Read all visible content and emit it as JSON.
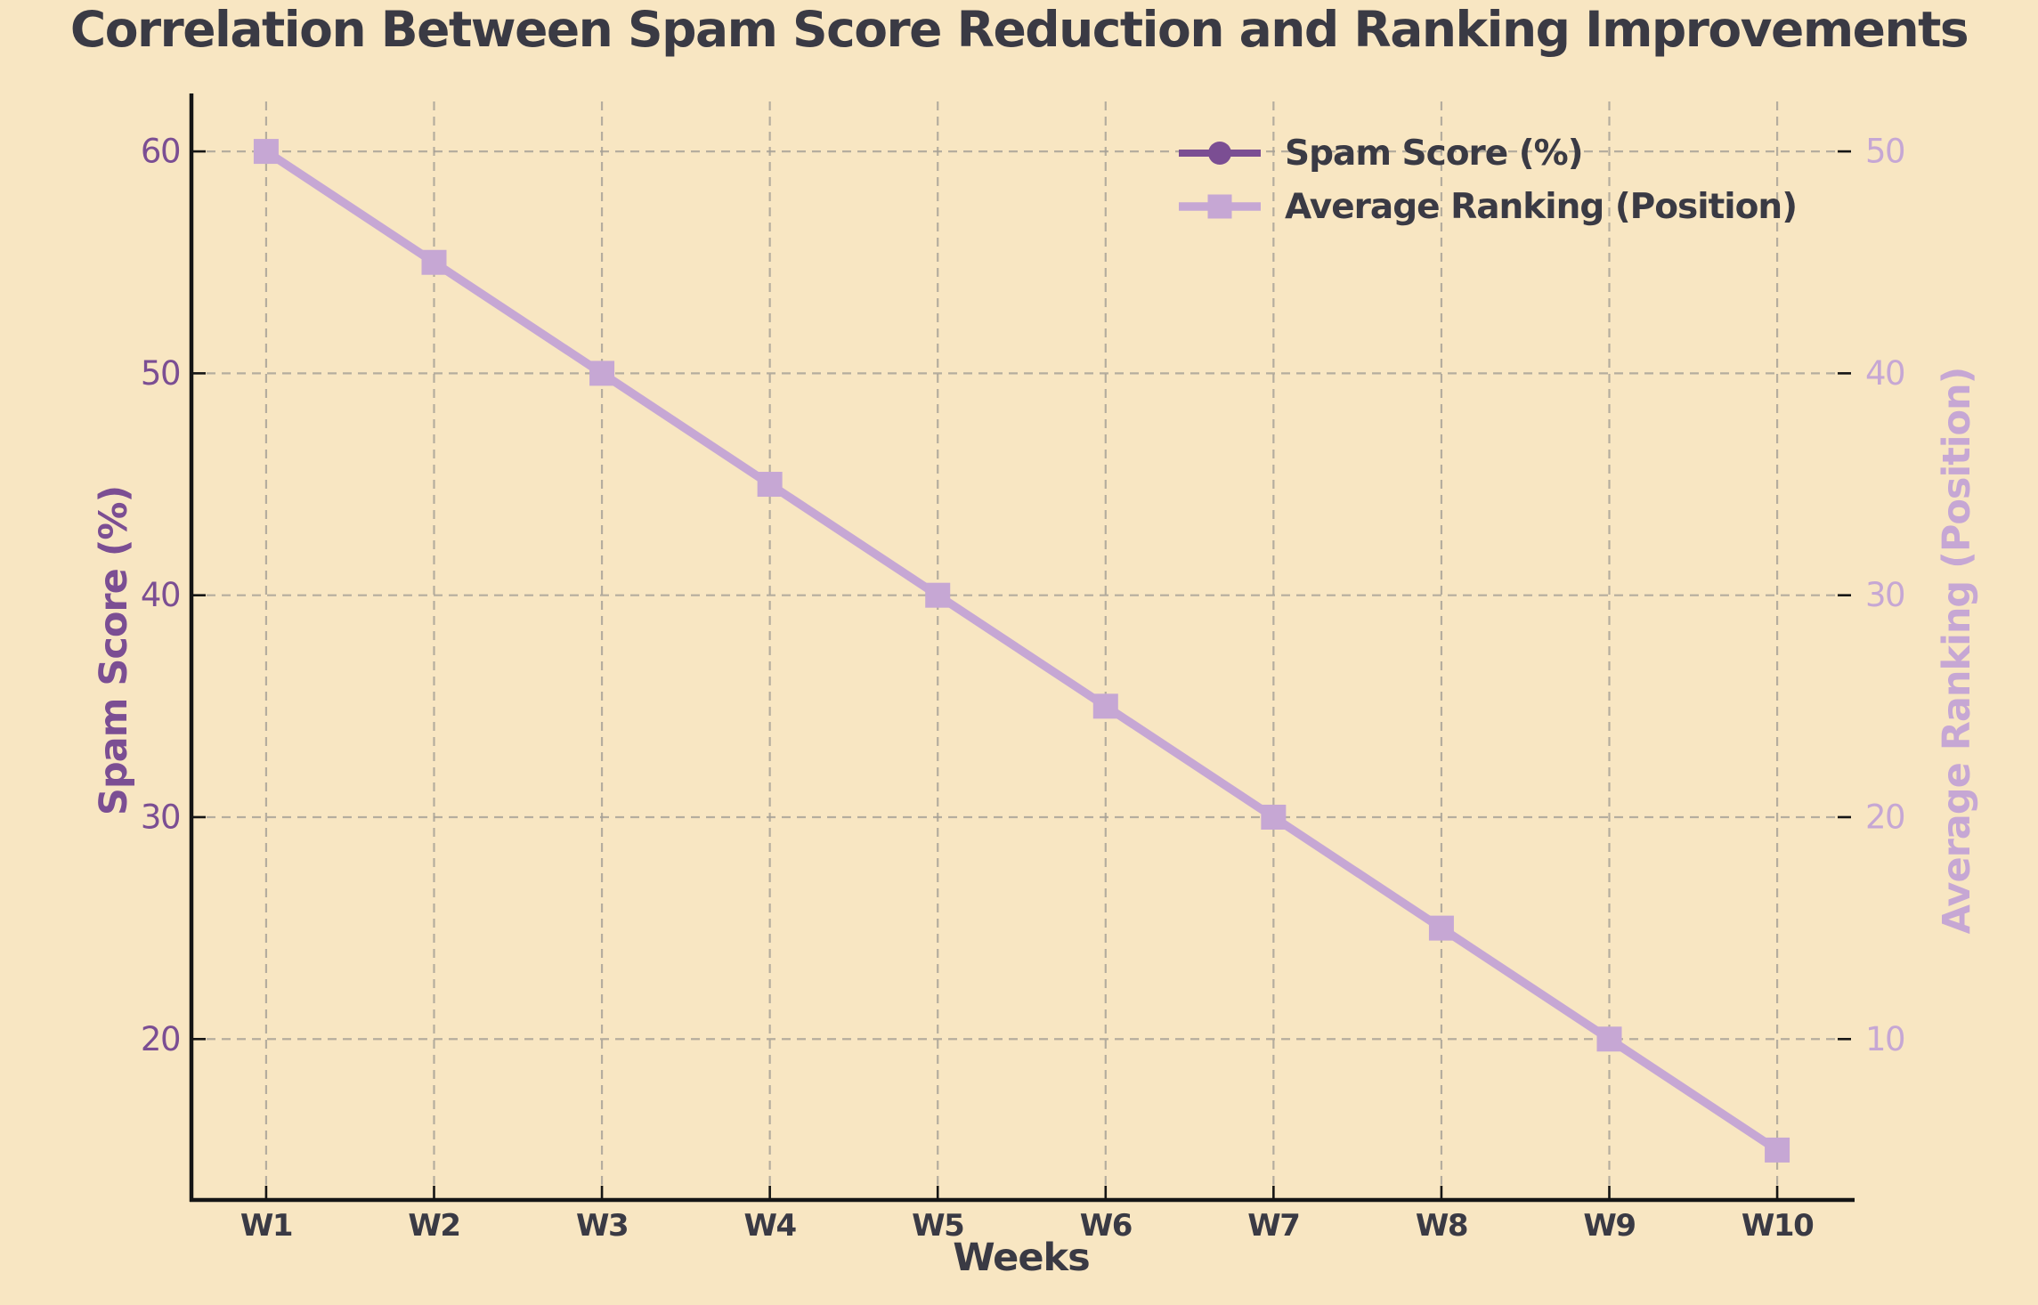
{
  "title": "Correlation Between Spam Score Reduction and Ranking Improvements",
  "chart_data": {
    "type": "line",
    "categories": [
      "W1",
      "W2",
      "W3",
      "W4",
      "W5",
      "W6",
      "W7",
      "W8",
      "W9",
      "W10"
    ],
    "series": [
      {
        "name": "Spam Score (%)",
        "axis": "left",
        "marker": "circle",
        "color": "#7B4E93",
        "values": [
          60,
          55,
          50,
          45,
          40,
          35,
          30,
          25,
          20,
          15
        ]
      },
      {
        "name": "Average Ranking (Position)",
        "axis": "right",
        "marker": "square",
        "color": "#C6A7D4",
        "values": [
          50,
          45,
          40,
          35,
          30,
          25,
          20,
          15,
          10,
          5
        ]
      }
    ],
    "xlabel": "Weeks",
    "ylabel_left": "Spam Score (%)",
    "ylabel_right": "Average Ranking (Position)",
    "yticks_left": [
      20,
      30,
      40,
      50,
      60
    ],
    "yticks_right": [
      10,
      20,
      30,
      40,
      50
    ],
    "ylim_left": [
      12.75,
      62.25
    ],
    "ylim_right": [
      2.75,
      52.25
    ],
    "grid": true,
    "grid_style": "dashed",
    "legend_position": "upper right"
  },
  "colors": {
    "background": "#F8E6C2",
    "spam": "#7B4E93",
    "ranking": "#C6A7D4",
    "text_dark": "#3A3A44",
    "grid": "#A5A096",
    "spine": "#151515"
  }
}
